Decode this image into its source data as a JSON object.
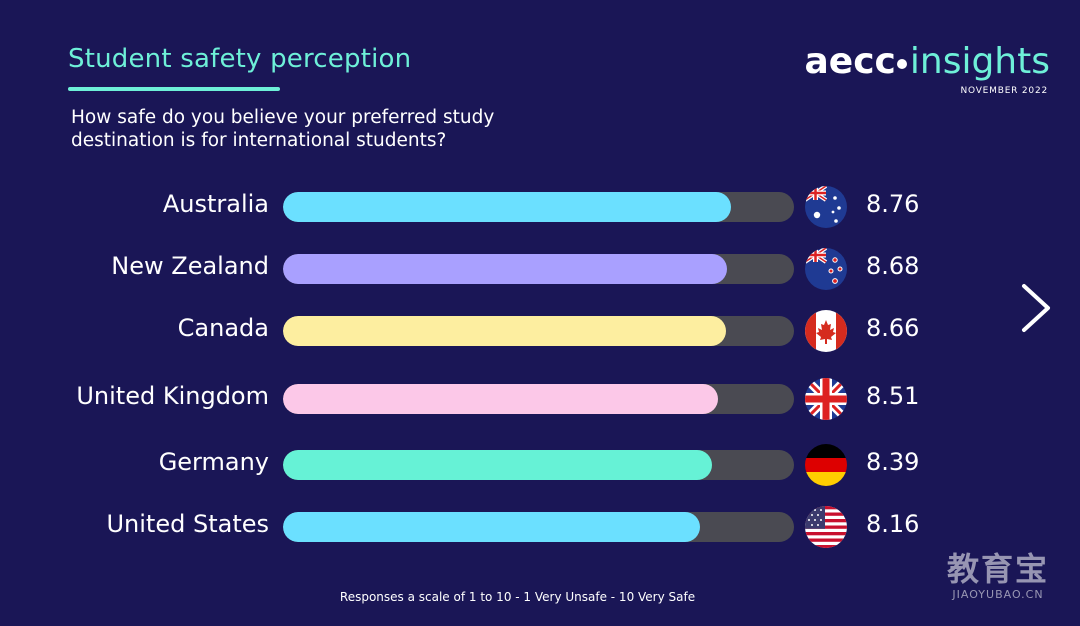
{
  "title": "Student safety perception",
  "subtitle": "How safe do you believe your preferred study destination is for international students?",
  "logo": {
    "brand": "aecc",
    "product": "insights",
    "date": "NOVEMBER 2022"
  },
  "footnote": "Responses a scale of 1 to 10 - 1 Very Unsafe - 10 Very Safe",
  "watermark": {
    "main": "教育宝",
    "sub": "JIAOYUBAO.CN"
  },
  "chart_data": {
    "type": "bar",
    "orientation": "horizontal",
    "title": "Student safety perception",
    "subtitle": "How safe do you believe your preferred study destination is for international students?",
    "xlim": [
      0,
      10
    ],
    "categories": [
      "Australia",
      "New Zealand",
      "Canada",
      "United Kingdom",
      "Germany",
      "United States"
    ],
    "values": [
      8.76,
      8.68,
      8.66,
      8.51,
      8.39,
      8.16
    ],
    "value_labels": [
      "8.76",
      "8.68",
      "8.66",
      "8.51",
      "8.39",
      "8.16"
    ],
    "bar_colors": [
      "#6be0ff",
      "#a9a0ff",
      "#fdeea0",
      "#fcc8e8",
      "#66f2d6",
      "#6be0ff"
    ],
    "flags": [
      "australia-flag-icon",
      "new-zealand-flag-icon",
      "canada-flag-icon",
      "uk-flag-icon",
      "germany-flag-icon",
      "usa-flag-icon"
    ],
    "grid": false,
    "legend": "none"
  }
}
